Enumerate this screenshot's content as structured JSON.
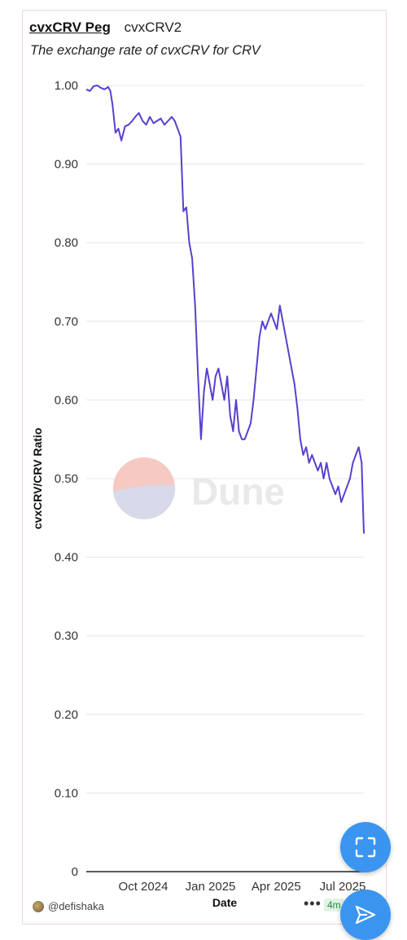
{
  "header": {
    "title": "cvxCRV Peg",
    "tab": "cvxCRV2",
    "subtitle": "The exchange rate of cvxCRV for CRV"
  },
  "watermark": "Dune",
  "footer": {
    "author": "@defishaka",
    "more": "•••",
    "badge": "4m"
  },
  "colors": {
    "line": "#5a3fd0",
    "grid": "#e6e6e6",
    "fab": "#3a95f0"
  },
  "icons": {
    "expand": "expand-icon",
    "send": "send-icon"
  },
  "chart_data": {
    "type": "line",
    "title": "cvxCRV Peg",
    "subtitle": "The exchange rate of cvxCRV for CRV",
    "xlabel": "Date",
    "ylabel": "cvxCRV/CRV Ratio",
    "ylim": [
      0,
      1.0
    ],
    "y_ticks": [
      "0",
      "0.10",
      "0.20",
      "0.30",
      "0.40",
      "0.50",
      "0.60",
      "0.70",
      "0.80",
      "0.90",
      "1.00"
    ],
    "x_ticks": [
      "Oct 2024",
      "Jan 2025",
      "Apr 2025",
      "Jul 2025"
    ],
    "xlim": [
      "2024-07-15",
      "2025-07-30"
    ],
    "grid": true,
    "series": [
      {
        "x": [
          "2024-07-15",
          "2024-07-20",
          "2024-07-25",
          "2024-07-30",
          "2024-08-04",
          "2024-08-09",
          "2024-08-14",
          "2024-08-17",
          "2024-08-20",
          "2024-08-24",
          "2024-08-28",
          "2024-09-01",
          "2024-09-06",
          "2024-09-11",
          "2024-09-16",
          "2024-09-20",
          "2024-09-25",
          "2024-09-30",
          "2024-10-05",
          "2024-10-10",
          "2024-10-15",
          "2024-10-20",
          "2024-10-25",
          "2024-10-30",
          "2024-11-04",
          "2024-11-09",
          "2024-11-13",
          "2024-11-17",
          "2024-11-21",
          "2024-11-25",
          "2024-11-29",
          "2024-12-03",
          "2024-12-07",
          "2024-12-11",
          "2024-12-15",
          "2024-12-19",
          "2024-12-23",
          "2024-12-27",
          "2024-12-31",
          "2025-01-04",
          "2025-01-08",
          "2025-01-12",
          "2025-01-16",
          "2025-01-20",
          "2025-01-24",
          "2025-01-28",
          "2025-02-01",
          "2025-02-05",
          "2025-02-09",
          "2025-02-13",
          "2025-02-17",
          "2025-02-21",
          "2025-02-25",
          "2025-03-01",
          "2025-03-05",
          "2025-03-09",
          "2025-03-13",
          "2025-03-17",
          "2025-03-21",
          "2025-03-25",
          "2025-03-29",
          "2025-04-02",
          "2025-04-06",
          "2025-04-10",
          "2025-04-14",
          "2025-04-18",
          "2025-04-22",
          "2025-04-26",
          "2025-04-30",
          "2025-05-04",
          "2025-05-08",
          "2025-05-12",
          "2025-05-16",
          "2025-05-20",
          "2025-05-24",
          "2025-05-28",
          "2025-06-01",
          "2025-06-05",
          "2025-06-09",
          "2025-06-13",
          "2025-06-17",
          "2025-06-21",
          "2025-06-25",
          "2025-06-29",
          "2025-07-03",
          "2025-07-07",
          "2025-07-11",
          "2025-07-15",
          "2025-07-19",
          "2025-07-23",
          "2025-07-27",
          "2025-07-30"
        ],
        "y": [
          0.995,
          0.993,
          0.999,
          1.0,
          0.997,
          0.995,
          0.998,
          0.993,
          0.975,
          0.94,
          0.945,
          0.93,
          0.948,
          0.95,
          0.955,
          0.96,
          0.965,
          0.955,
          0.95,
          0.96,
          0.952,
          0.955,
          0.958,
          0.95,
          0.955,
          0.96,
          0.955,
          0.945,
          0.935,
          0.84,
          0.845,
          0.8,
          0.78,
          0.72,
          0.63,
          0.55,
          0.61,
          0.64,
          0.62,
          0.6,
          0.63,
          0.64,
          0.62,
          0.6,
          0.63,
          0.58,
          0.56,
          0.6,
          0.56,
          0.55,
          0.55,
          0.56,
          0.57,
          0.6,
          0.64,
          0.68,
          0.7,
          0.69,
          0.7,
          0.71,
          0.7,
          0.69,
          0.72,
          0.7,
          0.68,
          0.66,
          0.64,
          0.62,
          0.59,
          0.55,
          0.53,
          0.54,
          0.52,
          0.53,
          0.52,
          0.51,
          0.52,
          0.5,
          0.52,
          0.5,
          0.49,
          0.48,
          0.49,
          0.47,
          0.48,
          0.49,
          0.5,
          0.52,
          0.53,
          0.54,
          0.52,
          0.43
        ]
      }
    ]
  }
}
